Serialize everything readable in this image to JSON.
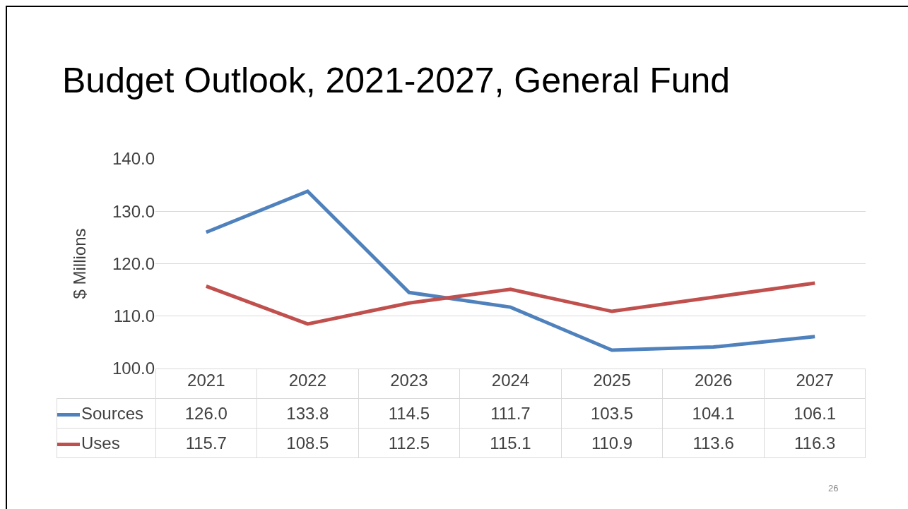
{
  "chart_data": {
    "type": "line",
    "title": "Budget Outlook, 2021-2027, General Fund",
    "ylabel": "$ Millions",
    "categories": [
      "2021",
      "2022",
      "2023",
      "2024",
      "2025",
      "2026",
      "2027"
    ],
    "series": [
      {
        "name": "Sources",
        "color": "#4f81bd",
        "values": [
          126.0,
          133.8,
          114.5,
          111.7,
          103.5,
          104.1,
          106.1
        ],
        "value_labels": [
          "126.0",
          "133.8",
          "114.5",
          "111.7",
          "103.5",
          "104.1",
          "106.1"
        ]
      },
      {
        "name": "Uses",
        "color": "#c0504d",
        "values": [
          115.7,
          108.5,
          112.5,
          115.1,
          110.9,
          113.6,
          116.3
        ],
        "value_labels": [
          "115.7",
          "108.5",
          "112.5",
          "115.1",
          "110.9",
          "113.6",
          "116.3"
        ]
      }
    ],
    "ylim": [
      100,
      140
    ],
    "yticks": [
      {
        "value": 100,
        "label": "100.0"
      },
      {
        "value": 110,
        "label": "110.0"
      },
      {
        "value": 120,
        "label": "120.0"
      },
      {
        "value": 130,
        "label": "130.0"
      },
      {
        "value": 140,
        "label": "140.0"
      }
    ],
    "grid": "y",
    "legend": "bottom",
    "marker": "none",
    "line_style": "solid",
    "annotations": [
      "26"
    ]
  }
}
